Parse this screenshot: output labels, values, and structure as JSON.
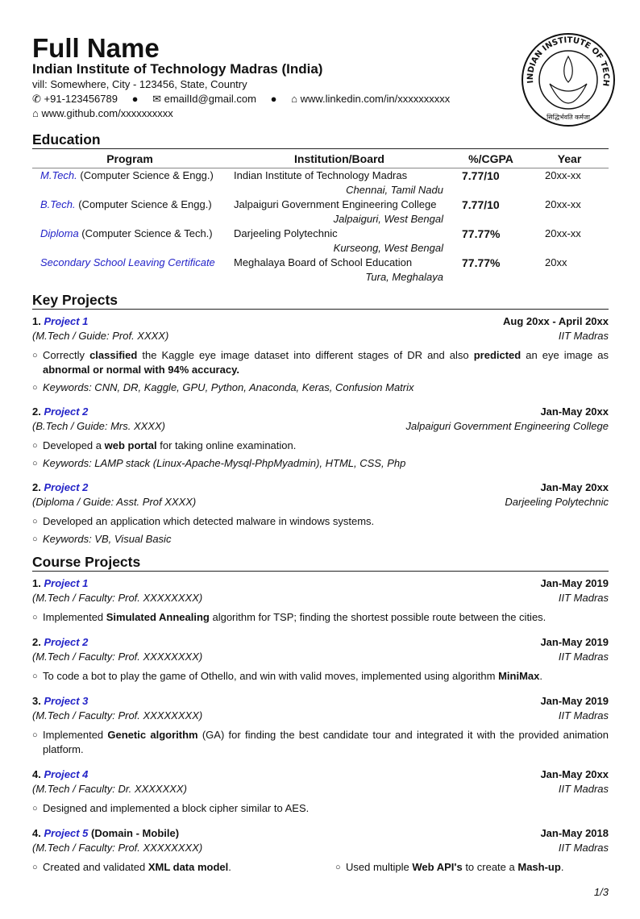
{
  "header": {
    "name": "Full Name",
    "institute": "Indian Institute of Technology Madras (India)",
    "address": "vill: Somewhere, City - 123456, State, Country",
    "phone": "+91-123456789",
    "email": "emailId@gmail.com",
    "linkedin": "www.linkedin.com/in/xxxxxxxxxx",
    "github": "www.github.com/xxxxxxxxxx",
    "icons": [
      "phone-icon",
      "envelope-icon",
      "linkedin-icon",
      "github-icon"
    ],
    "logo_text": "INDIAN INSTITUTE OF TECHNOLOGY MADRAS",
    "logo_motto": "सिद्धिर्भवति कर्मजा"
  },
  "colors": {
    "link": "#2424c8"
  },
  "education": {
    "title": "Education",
    "headers": [
      "Program",
      "Institution/Board",
      "%/CGPA",
      "Year"
    ],
    "rows": [
      {
        "degree": "M.Tech.",
        "field": " (Computer Science & Engg.)",
        "institution": "Indian Institute of Technology Madras",
        "location": "Chennai, Tamil Nadu",
        "score": "7.77/10",
        "year": "20xx-xx"
      },
      {
        "degree": "B.Tech.",
        "field": " (Computer Science & Engg.)",
        "institution": "Jalpaiguri Government Engineering College",
        "location": "Jalpaiguri, West Bengal",
        "score": "7.77/10",
        "year": "20xx-xx"
      },
      {
        "degree": "Diploma",
        "field": " (Computer Science & Tech.)",
        "institution": "Darjeeling Polytechnic",
        "location": "Kurseong, West Bengal",
        "score": "77.77%",
        "year": "20xx-xx"
      },
      {
        "degree": "Secondary School Leaving Certificate",
        "field": "",
        "institution": "Meghalaya Board of School Education",
        "location": "Tura, Meghalaya",
        "score": "77.77%",
        "year": "20xx"
      }
    ]
  },
  "key_projects": {
    "title": "Key Projects",
    "items": [
      {
        "num": "1.",
        "name": "Project 1",
        "suffix": "",
        "date": "Aug 20xx - April 20xx",
        "role": "(M.Tech / Guide: Prof. XXXX)",
        "place": "IIT Madras",
        "bullets": [
          [
            {
              "t": "Correctly "
            },
            {
              "t": "classified",
              "b": true
            },
            {
              "t": " the Kaggle eye image dataset into different stages of DR and also "
            },
            {
              "t": "predicted",
              "b": true
            },
            {
              "t": " an eye image as "
            },
            {
              "t": "abnormal or normal with 94% accuracy.",
              "b": true
            }
          ],
          [
            {
              "t": "Keywords: CNN, DR, Kaggle, GPU, Python, Anaconda, Keras, Confusion Matrix",
              "i": true
            }
          ]
        ]
      },
      {
        "num": "2.",
        "name": "Project 2",
        "suffix": "",
        "date": "Jan-May 20xx",
        "role": "(B.Tech / Guide: Mrs. XXXX)",
        "place": "Jalpaiguri Government Engineering College",
        "bullets": [
          [
            {
              "t": "Developed a "
            },
            {
              "t": "web portal",
              "b": true
            },
            {
              "t": " for taking online examination."
            }
          ],
          [
            {
              "t": "Keywords: LAMP stack (Linux-Apache-Mysql-PhpMyadmin), HTML, CSS, Php",
              "i": true
            }
          ]
        ]
      },
      {
        "num": "2.",
        "name": "Project 2",
        "suffix": "",
        "date": "Jan-May 20xx",
        "role": "(Diploma / Guide: Asst. Prof XXXX)",
        "place": "Darjeeling Polytechnic",
        "bullets": [
          [
            {
              "t": "Developed an application which detected malware in windows systems."
            }
          ],
          [
            {
              "t": "Keywords: VB, Visual Basic",
              "i": true
            }
          ]
        ]
      }
    ]
  },
  "course_projects": {
    "title": "Course Projects",
    "items": [
      {
        "num": "1.",
        "name": "Project 1",
        "suffix": "",
        "date": "Jan-May 2019",
        "role": "(M.Tech / Faculty: Prof. XXXXXXXX)",
        "place": "IIT Madras",
        "bullets": [
          [
            {
              "t": "Implemented "
            },
            {
              "t": "Simulated Annealing",
              "b": true
            },
            {
              "t": " algorithm for TSP; finding the shortest possible route between the cities."
            }
          ]
        ]
      },
      {
        "num": "2.",
        "name": "Project 2",
        "suffix": "",
        "date": "Jan-May 2019",
        "role": "(M.Tech / Faculty: Prof. XXXXXXXX)",
        "place": "IIT Madras",
        "bullets": [
          [
            {
              "t": "To code a bot to play the game of Othello, and win with valid moves, implemented using algorithm "
            },
            {
              "t": "MiniMax",
              "b": true
            },
            {
              "t": "."
            }
          ]
        ]
      },
      {
        "num": "3.",
        "name": "Project 3",
        "suffix": "",
        "date": "Jan-May 2019",
        "role": "(M.Tech / Faculty: Prof. XXXXXXXX)",
        "place": "IIT Madras",
        "bullets": [
          [
            {
              "t": "Implemented "
            },
            {
              "t": "Genetic algorithm",
              "b": true
            },
            {
              "t": " (GA) for finding the best candidate tour and integrated it with the provided animation platform."
            }
          ]
        ]
      },
      {
        "num": "4.",
        "name": "Project 4",
        "suffix": "",
        "date": "Jan-May 20xx",
        "role": "(M.Tech / Faculty: Dr. XXXXXXX)",
        "place": "IIT Madras",
        "bullets": [
          [
            {
              "t": "Designed and implemented a block cipher similar to AES."
            }
          ]
        ]
      },
      {
        "num": "4.",
        "name": "Project 5",
        "suffix": " (Domain - Mobile)",
        "date": "Jan-May 2018",
        "role": "(M.Tech / Faculty: Prof. XXXXXXXX)",
        "place": "IIT Madras",
        "inline": true,
        "bullets": [
          [
            {
              "t": "Created and validated "
            },
            {
              "t": "XML data model",
              "b": true
            },
            {
              "t": "."
            }
          ],
          [
            {
              "t": "Used multiple "
            },
            {
              "t": "Web API's",
              "b": true
            },
            {
              "t": " to create a "
            },
            {
              "t": "Mash-up",
              "b": true
            },
            {
              "t": "."
            }
          ]
        ]
      }
    ]
  },
  "footer": {
    "page": "1/3"
  }
}
